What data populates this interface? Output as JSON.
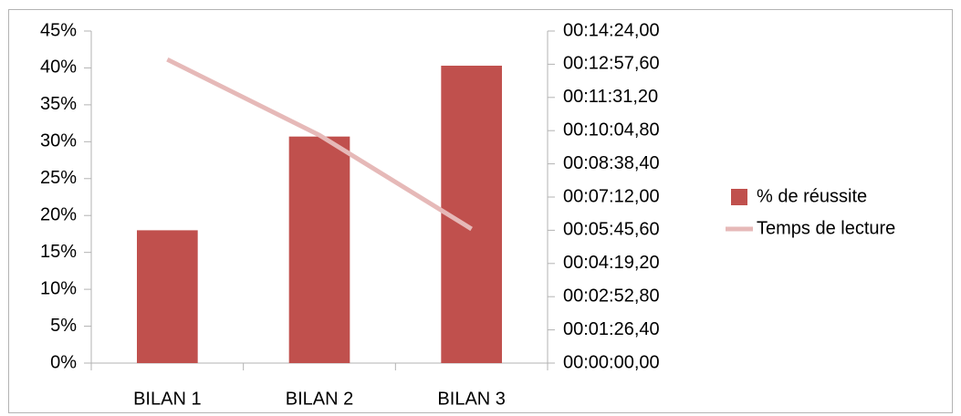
{
  "chart_data": {
    "type": "bar_line",
    "categories": [
      "BILAN 1",
      "BILAN 2",
      "BILAN 3"
    ],
    "series": [
      {
        "name": "% de réussite",
        "color": "#c0504d",
        "type": "bar",
        "values": [
          18,
          30.7,
          40.3
        ]
      },
      {
        "name": "Temps de lecture",
        "color": "#e6b9b8",
        "type": "line",
        "axis": "y2",
        "values": [
          790,
          593,
          349
        ]
      }
    ],
    "ylim": [
      0,
      45
    ],
    "yticks": [
      {
        "value": 0,
        "label": "0%"
      },
      {
        "value": 5,
        "label": "5%"
      },
      {
        "value": 10,
        "label": "10%"
      },
      {
        "value": 15,
        "label": "15%"
      },
      {
        "value": 20,
        "label": "20%"
      },
      {
        "value": 25,
        "label": "25%"
      },
      {
        "value": 30,
        "label": "30%"
      },
      {
        "value": 35,
        "label": "35%"
      },
      {
        "value": 40,
        "label": "40%"
      },
      {
        "value": 45,
        "label": "45%"
      }
    ],
    "y2lim": [
      0,
      864
    ],
    "y2ticks": [
      {
        "value": 0,
        "label": "00:00:00,00"
      },
      {
        "value": 86.4,
        "label": "00:01:26,40"
      },
      {
        "value": 172.8,
        "label": "00:02:52,80"
      },
      {
        "value": 259.2,
        "label": "00:04:19,20"
      },
      {
        "value": 345.6,
        "label": "00:05:45,60"
      },
      {
        "value": 432,
        "label": "00:07:12,00"
      },
      {
        "value": 518.4,
        "label": "00:08:38,40"
      },
      {
        "value": 604.8,
        "label": "00:10:04,80"
      },
      {
        "value": 691.2,
        "label": "00:11:31,20"
      },
      {
        "value": 777.6,
        "label": "00:12:57,60"
      },
      {
        "value": 864,
        "label": "00:14:24,00"
      }
    ],
    "legend": "right",
    "grid": false
  }
}
